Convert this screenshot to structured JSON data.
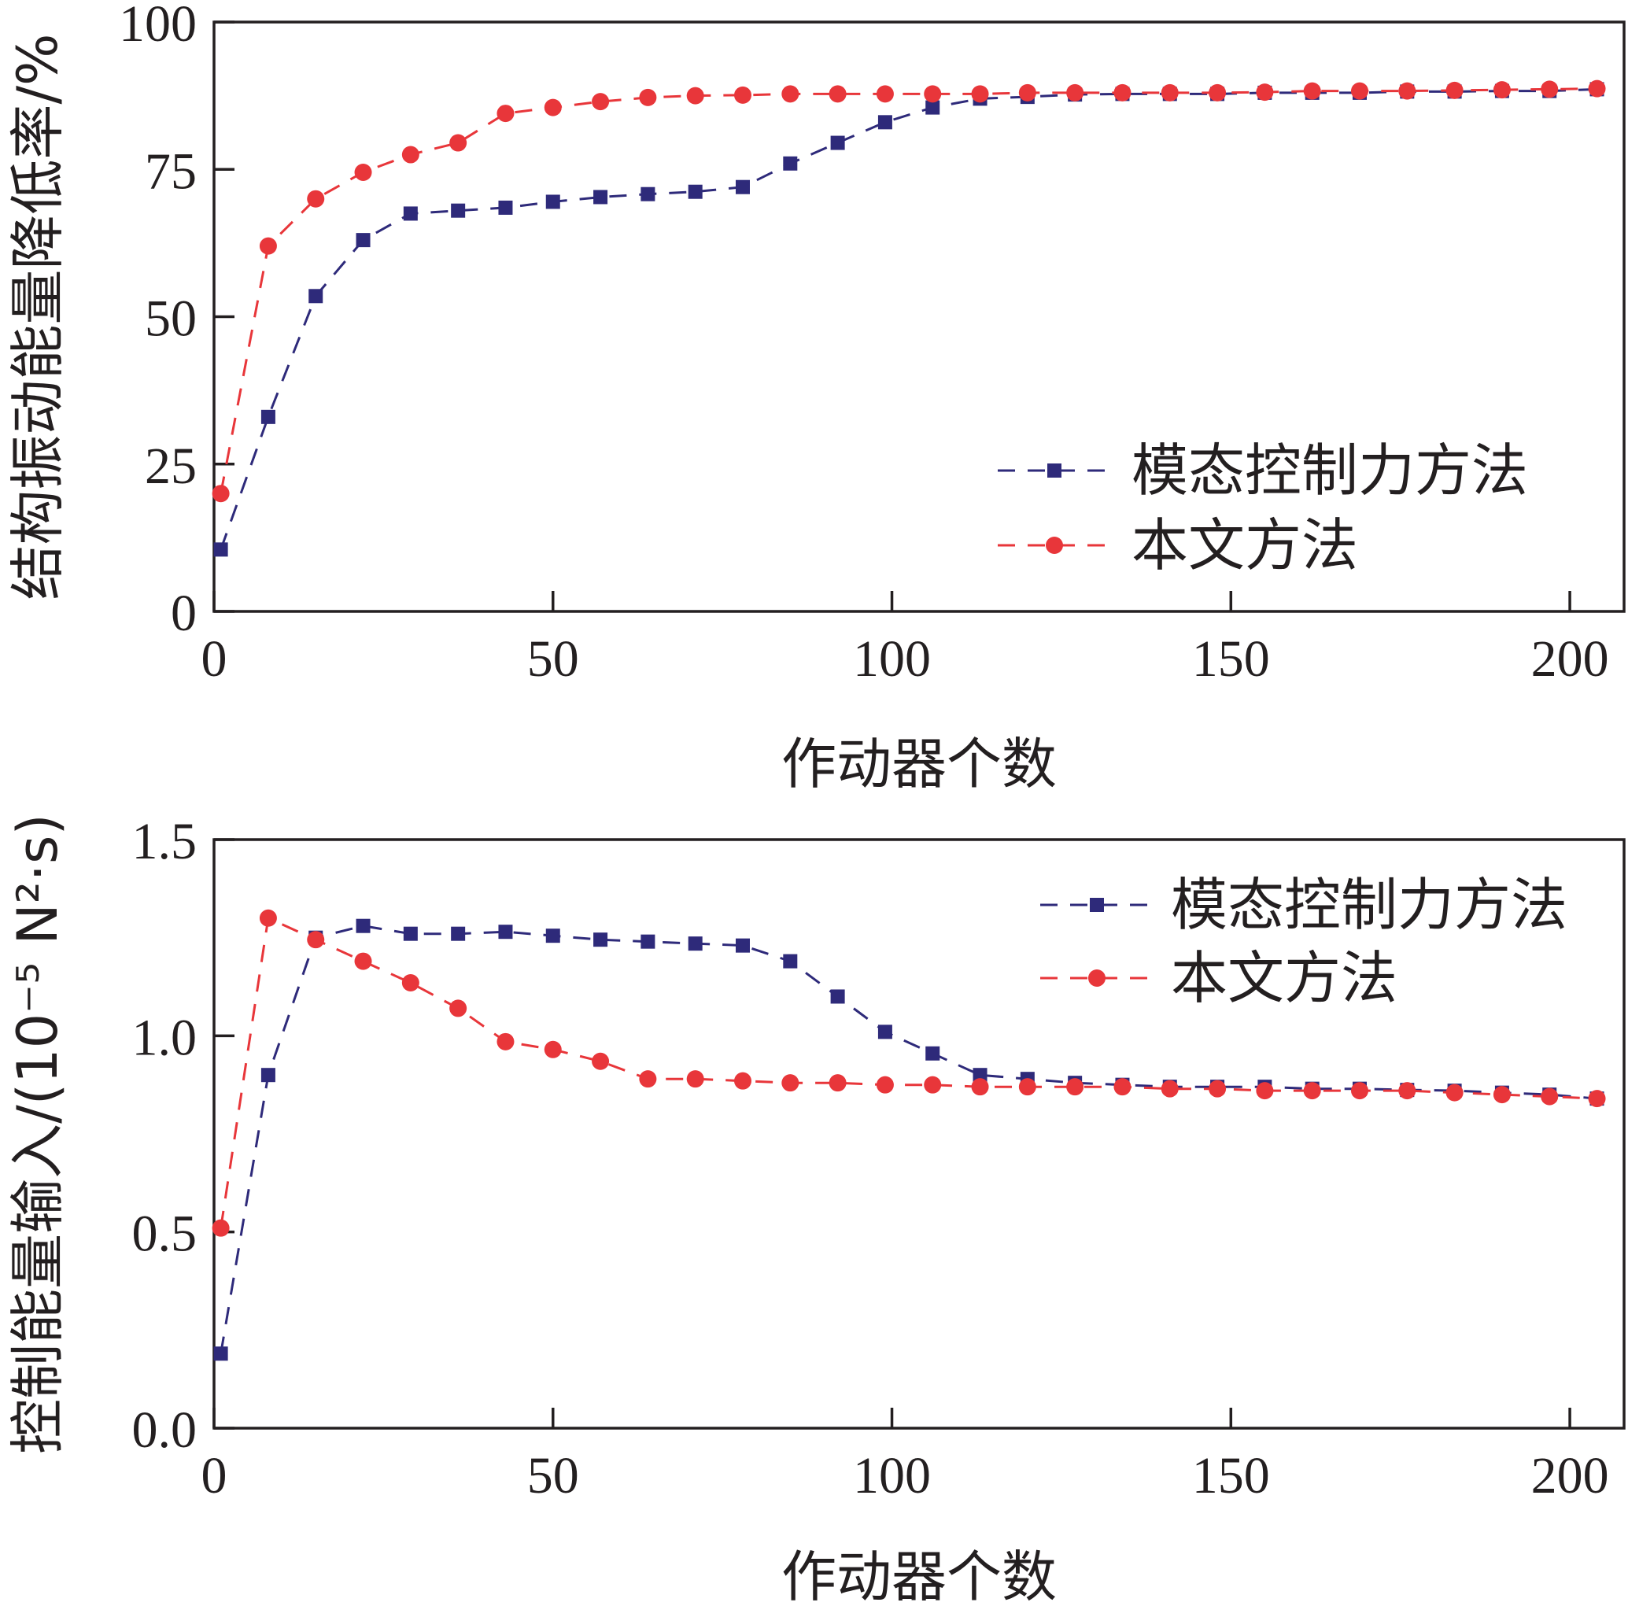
{
  "chart_data": [
    {
      "type": "line",
      "xlabel": "作动器个数",
      "ylabel": "结构振动能量降低率/%",
      "xlim": [
        0,
        208
      ],
      "ylim": [
        0,
        100
      ],
      "xticks": [
        "0",
        "50",
        "100",
        "150",
        "200"
      ],
      "yticks": [
        "0",
        "25",
        "50",
        "75",
        "100"
      ],
      "legend_position": "lower-right",
      "x": [
        1,
        8,
        15,
        22,
        29,
        36,
        43,
        50,
        57,
        64,
        71,
        78,
        85,
        92,
        99,
        106,
        113,
        120,
        127,
        134,
        141,
        148,
        155,
        162,
        169,
        176,
        183,
        190,
        197,
        204
      ],
      "series": [
        {
          "name": "模态控制力方法",
          "marker": "square",
          "color": "#2e2a7a",
          "values": [
            10.5,
            33,
            53.5,
            63,
            67.5,
            68,
            68.5,
            69.5,
            70.3,
            70.8,
            71.2,
            72,
            76,
            79.5,
            83,
            85.5,
            87,
            87.3,
            87.7,
            87.8,
            87.8,
            87.8,
            88,
            88,
            88,
            88.2,
            88.2,
            88.3,
            88.3,
            88.6
          ]
        },
        {
          "name": "本文方法",
          "marker": "circle",
          "color": "#e8363a",
          "values": [
            20,
            62,
            70,
            74.5,
            77.5,
            79.5,
            84.5,
            85.5,
            86.5,
            87.2,
            87.5,
            87.6,
            87.8,
            87.8,
            87.8,
            87.8,
            87.8,
            88,
            88,
            88,
            88,
            88,
            88.1,
            88.3,
            88.3,
            88.3,
            88.4,
            88.5,
            88.6,
            88.7
          ]
        }
      ]
    },
    {
      "type": "line",
      "xlabel": "作动器个数",
      "ylabel": "控制能量输入/(10⁻⁵ N²·s)",
      "xlim": [
        0,
        208
      ],
      "ylim": [
        0,
        1.5
      ],
      "xticks": [
        "0",
        "50",
        "100",
        "150",
        "200"
      ],
      "yticks": [
        "0.0",
        "0.5",
        "1.0",
        "1.5"
      ],
      "legend_position": "top-right",
      "x": [
        1,
        8,
        15,
        22,
        29,
        36,
        43,
        50,
        57,
        64,
        71,
        78,
        85,
        92,
        99,
        106,
        113,
        120,
        127,
        134,
        141,
        148,
        155,
        162,
        169,
        176,
        183,
        190,
        197,
        204
      ],
      "series": [
        {
          "name": "模态控制力方法",
          "marker": "square",
          "color": "#2e2a7a",
          "values": [
            0.19,
            0.9,
            1.25,
            1.28,
            1.26,
            1.26,
            1.265,
            1.255,
            1.245,
            1.24,
            1.235,
            1.23,
            1.19,
            1.1,
            1.01,
            0.955,
            0.9,
            0.89,
            0.88,
            0.875,
            0.87,
            0.87,
            0.87,
            0.865,
            0.865,
            0.862,
            0.86,
            0.855,
            0.85,
            0.84
          ]
        },
        {
          "name": "本文方法",
          "marker": "circle",
          "color": "#e8363a",
          "values": [
            0.51,
            1.3,
            1.245,
            1.19,
            1.135,
            1.07,
            0.985,
            0.965,
            0.935,
            0.89,
            0.89,
            0.885,
            0.88,
            0.88,
            0.875,
            0.875,
            0.87,
            0.87,
            0.87,
            0.87,
            0.865,
            0.865,
            0.86,
            0.86,
            0.86,
            0.86,
            0.855,
            0.85,
            0.845,
            0.84
          ]
        }
      ]
    }
  ]
}
